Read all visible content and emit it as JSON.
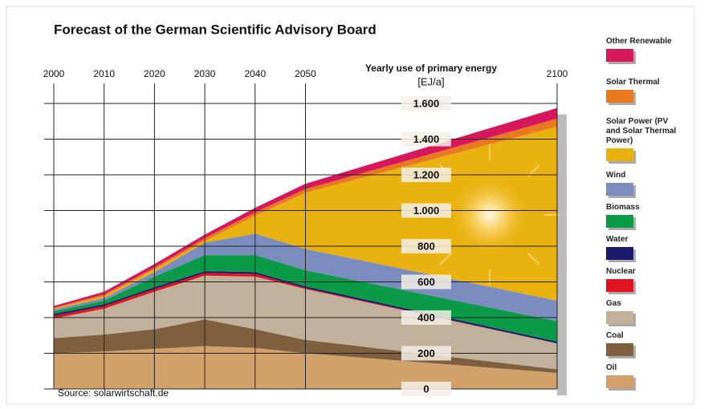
{
  "chart_data": {
    "type": "stacked_area",
    "title": "Forecast of the German Scientific Advisory Board",
    "y_label": "Yearly use of primary energy",
    "y_unit": "[EJ/a]",
    "source": "Source: solarwirtschaft.de",
    "x": [
      2000,
      2010,
      2020,
      2030,
      2040,
      2050,
      2100
    ],
    "xlim": [
      2000,
      2100
    ],
    "xticks": [
      2000,
      2010,
      2020,
      2030,
      2040,
      2050,
      2100
    ],
    "ylim": [
      0,
      1600
    ],
    "yticks": [
      0,
      200,
      400,
      600,
      800,
      {
        "value": 1000,
        "label": "1.000"
      },
      {
        "value": 1200,
        "label": "1.200"
      },
      {
        "value": 1400,
        "label": "1.400"
      },
      {
        "value": 1600,
        "label": "1.600"
      }
    ],
    "grid": true,
    "legend": "right",
    "series": [
      {
        "name": "Oil",
        "color": "#d2a16b",
        "values": [
          200,
          210,
          225,
          240,
          230,
          200,
          90
        ]
      },
      {
        "name": "Coal",
        "color": "#7e5f3e",
        "values": [
          85,
          95,
          110,
          150,
          105,
          75,
          20
        ]
      },
      {
        "name": "Gas",
        "color": "#c1b19b",
        "values": [
          110,
          145,
          210,
          245,
          295,
          285,
          145
        ]
      },
      {
        "name": "Nuclear",
        "color": "#e0141e",
        "values": [
          15,
          15,
          15,
          15,
          15,
          5,
          0
        ]
      },
      {
        "name": "Water",
        "color": "#1b1a6b",
        "values": [
          10,
          10,
          10,
          10,
          10,
          10,
          10
        ]
      },
      {
        "name": "Biomass",
        "color": "#0b9a47",
        "values": [
          15,
          20,
          60,
          90,
          95,
          90,
          115
        ]
      },
      {
        "name": "Wind",
        "color": "#7b8dbf",
        "values": [
          10,
          15,
          25,
          70,
          120,
          120,
          115
        ]
      },
      {
        "name": "Solar Power (PV and Solar Thermal Power)",
        "color": "#e9b20f",
        "values": [
          5,
          10,
          15,
          10,
          100,
          315,
          975
        ]
      },
      {
        "name": "Solar Thermal",
        "color": "#e8791f",
        "values": [
          5,
          10,
          10,
          15,
          20,
          20,
          45
        ]
      },
      {
        "name": "Other Renewable",
        "color": "#d6175c",
        "values": [
          10,
          15,
          20,
          20,
          25,
          30,
          60
        ]
      }
    ]
  }
}
